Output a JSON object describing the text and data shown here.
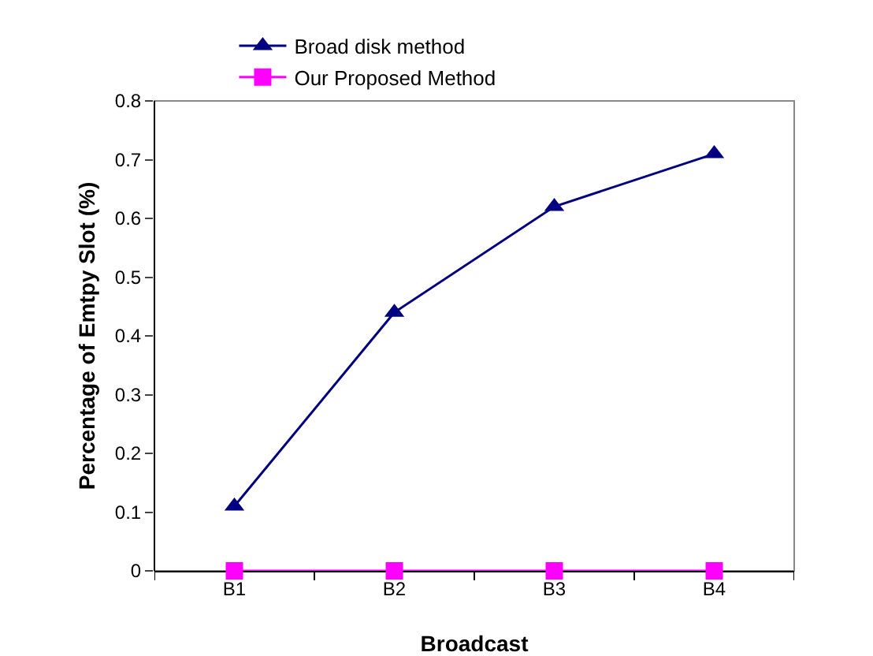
{
  "chart_data": {
    "type": "line",
    "xlabel": "Broadcast",
    "ylabel": "Percentage of Emtpy Slot (%)",
    "categories": [
      "B1",
      "B2",
      "B3",
      "B4"
    ],
    "series": [
      {
        "name": "Broad disk method",
        "color": "#000080",
        "marker": "triangle",
        "values": [
          0.11,
          0.44,
          0.62,
          0.71
        ]
      },
      {
        "name": "Our Proposed Method",
        "color": "#ff00ff",
        "marker": "square",
        "values": [
          0,
          0,
          0,
          0
        ]
      }
    ],
    "ylim": [
      0,
      0.8
    ],
    "yticks": [
      0,
      0.1,
      0.2,
      0.3,
      0.4,
      0.5,
      0.6,
      0.7,
      0.8
    ],
    "grid": false,
    "legend": "top",
    "line_style": "solid"
  }
}
